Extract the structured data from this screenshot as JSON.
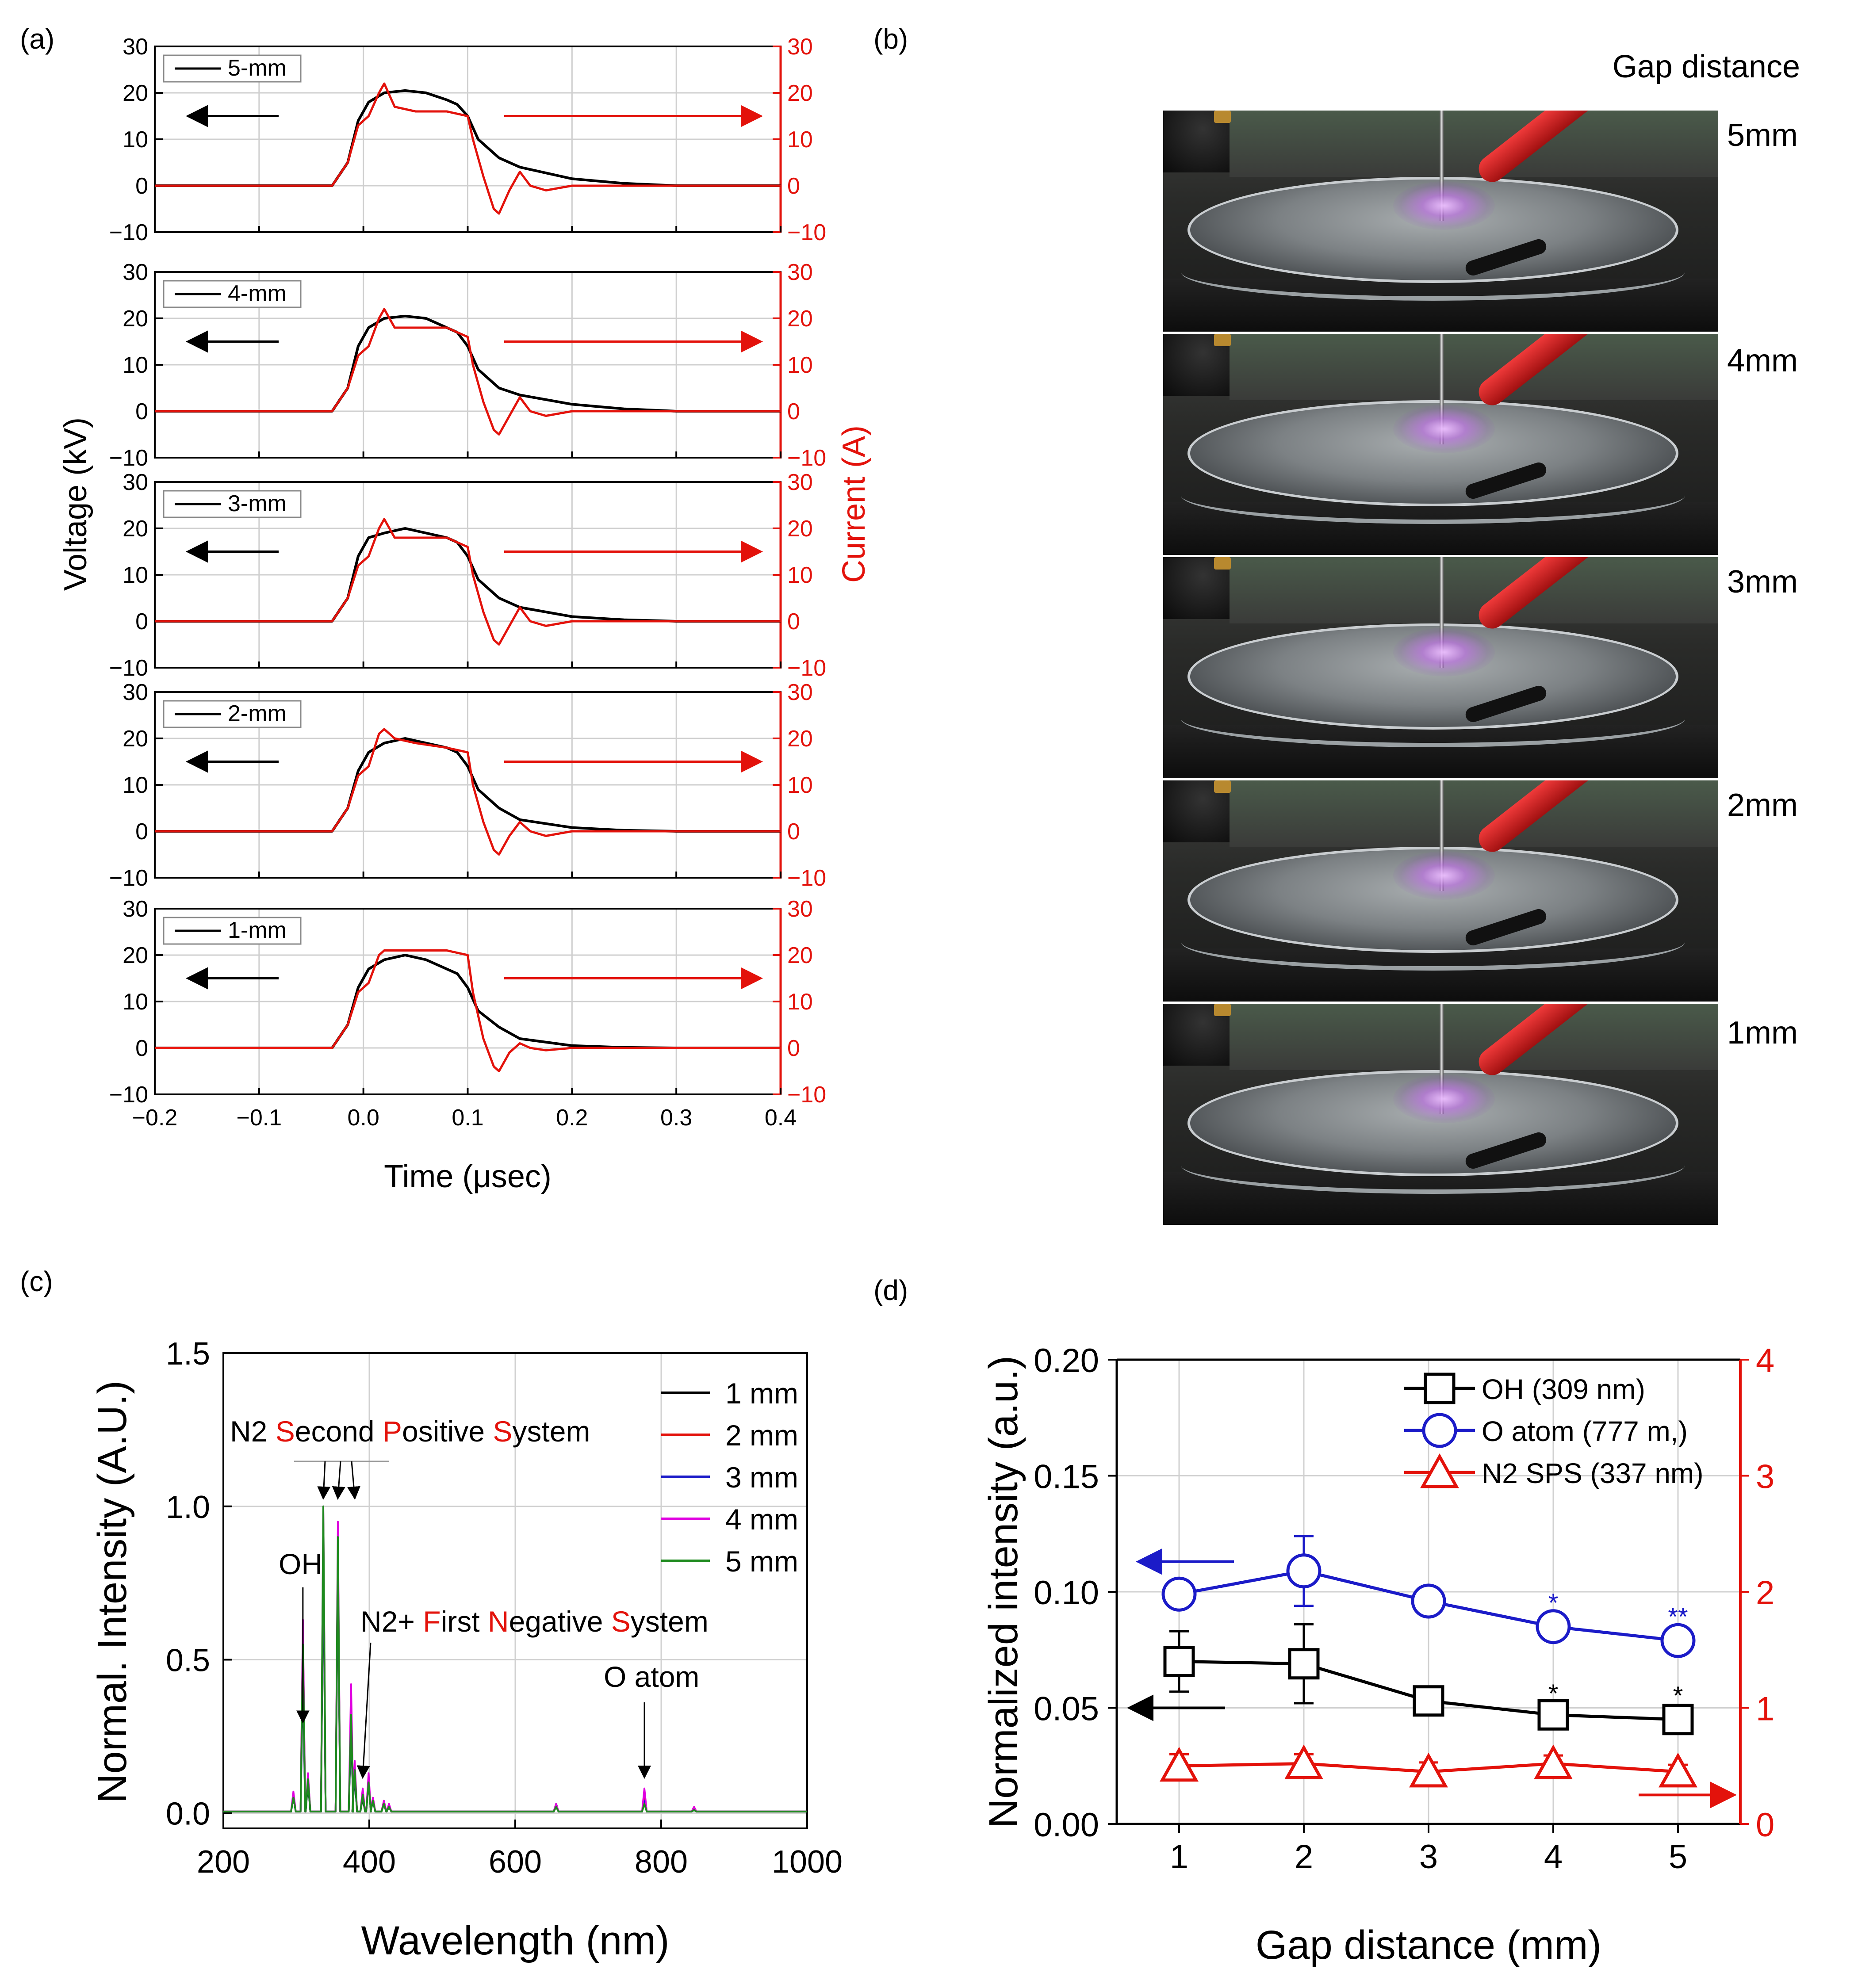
{
  "panel_labels": {
    "a": "(a)",
    "b": "(b)",
    "c": "(c)",
    "d": "(d)"
  },
  "chart_data": [
    {
      "id": "a",
      "type": "line",
      "title": "",
      "xlabel": "Time (μsec)",
      "ylabel_left": "Voltage (kV)",
      "ylabel_right": "Current (A)",
      "xlim": [
        -0.2,
        0.4
      ],
      "ylim_left": [
        -10,
        30
      ],
      "ylim_right": [
        -10,
        30
      ],
      "x_ticks": [
        "−0.2",
        "−0.1",
        "0.0",
        "0.1",
        "0.2",
        "0.3",
        "0.4"
      ],
      "y_ticks": [
        "−10",
        "0",
        "10",
        "20",
        "30"
      ],
      "colors": {
        "voltage": "#000000",
        "current": "#e3120b"
      },
      "subplots": [
        {
          "legend": "5-mm",
          "voltage": {
            "x": [
              -0.2,
              -0.03,
              -0.015,
              -0.005,
              0.005,
              0.02,
              0.04,
              0.06,
              0.08,
              0.09,
              0.1,
              0.11,
              0.13,
              0.15,
              0.2,
              0.25,
              0.3,
              0.35,
              0.4
            ],
            "y": [
              0,
              0,
              5,
              14,
              18,
              20,
              20.5,
              20,
              18.5,
              17.5,
              15,
              10,
              6,
              4,
              1.5,
              0.5,
              0,
              0,
              0
            ]
          },
          "current": {
            "x": [
              -0.2,
              -0.03,
              -0.015,
              -0.005,
              0.0,
              0.005,
              0.015,
              0.02,
              0.03,
              0.05,
              0.08,
              0.1,
              0.105,
              0.115,
              0.125,
              0.13,
              0.14,
              0.15,
              0.16,
              0.175,
              0.2,
              0.25,
              0.3,
              0.35,
              0.4
            ],
            "y": [
              0,
              0,
              5,
              13,
              14,
              15,
              20,
              22,
              17,
              16,
              16,
              15,
              10,
              2,
              -5,
              -6,
              -1,
              3,
              0,
              -1,
              0,
              0,
              0,
              0,
              0
            ]
          }
        },
        {
          "legend": "4-mm",
          "voltage": {
            "x": [
              -0.2,
              -0.03,
              -0.015,
              -0.005,
              0.005,
              0.02,
              0.04,
              0.06,
              0.08,
              0.09,
              0.1,
              0.11,
              0.13,
              0.15,
              0.2,
              0.25,
              0.3,
              0.35,
              0.4
            ],
            "y": [
              0,
              0,
              5,
              14,
              18,
              20,
              20.5,
              20,
              18,
              17,
              14,
              9,
              5,
              3.5,
              1.5,
              0.5,
              0,
              0,
              0
            ]
          },
          "current": {
            "x": [
              -0.2,
              -0.03,
              -0.015,
              -0.005,
              0.0,
              0.005,
              0.015,
              0.02,
              0.03,
              0.05,
              0.08,
              0.1,
              0.105,
              0.115,
              0.125,
              0.13,
              0.14,
              0.15,
              0.16,
              0.175,
              0.2,
              0.25,
              0.3,
              0.35,
              0.4
            ],
            "y": [
              0,
              0,
              5,
              12,
              13,
              14,
              20,
              22,
              18,
              18,
              18,
              16,
              10,
              2,
              -4,
              -5,
              -1,
              3,
              0,
              -1,
              0,
              0,
              0,
              0,
              0
            ]
          }
        },
        {
          "legend": "3-mm",
          "voltage": {
            "x": [
              -0.2,
              -0.03,
              -0.015,
              -0.005,
              0.005,
              0.02,
              0.04,
              0.06,
              0.08,
              0.09,
              0.1,
              0.11,
              0.13,
              0.15,
              0.2,
              0.25,
              0.3,
              0.35,
              0.4
            ],
            "y": [
              0,
              0,
              5,
              14,
              18,
              19,
              20,
              19,
              18,
              17,
              14,
              9,
              5,
              3,
              1,
              0.3,
              0,
              0,
              0
            ]
          },
          "current": {
            "x": [
              -0.2,
              -0.03,
              -0.015,
              -0.005,
              0.0,
              0.005,
              0.015,
              0.02,
              0.03,
              0.05,
              0.08,
              0.1,
              0.105,
              0.115,
              0.125,
              0.13,
              0.14,
              0.15,
              0.16,
              0.175,
              0.2,
              0.25,
              0.3,
              0.35,
              0.4
            ],
            "y": [
              0,
              0,
              5,
              12,
              13,
              14,
              20,
              22,
              18,
              18,
              18,
              16,
              10,
              2,
              -4,
              -5,
              -1,
              3,
              0,
              -1,
              0,
              0,
              0,
              0,
              0
            ]
          }
        },
        {
          "legend": "2-mm",
          "voltage": {
            "x": [
              -0.2,
              -0.03,
              -0.015,
              -0.005,
              0.005,
              0.02,
              0.04,
              0.06,
              0.08,
              0.09,
              0.1,
              0.11,
              0.13,
              0.15,
              0.2,
              0.25,
              0.3,
              0.35,
              0.4
            ],
            "y": [
              0,
              0,
              5,
              13,
              17,
              19,
              20,
              19,
              18,
              17,
              14,
              9,
              5,
              2.5,
              0.8,
              0.2,
              0,
              0,
              0
            ]
          },
          "current": {
            "x": [
              -0.2,
              -0.03,
              -0.015,
              -0.005,
              0.0,
              0.005,
              0.015,
              0.02,
              0.03,
              0.05,
              0.08,
              0.1,
              0.105,
              0.115,
              0.125,
              0.13,
              0.14,
              0.15,
              0.16,
              0.175,
              0.2,
              0.25,
              0.3,
              0.35,
              0.4
            ],
            "y": [
              0,
              0,
              5,
              12,
              13,
              14,
              21,
              22,
              20,
              19,
              18,
              17,
              10,
              2,
              -4,
              -5,
              -1,
              2,
              0,
              -1,
              0,
              0,
              0,
              0,
              0
            ]
          }
        },
        {
          "legend": "1-mm",
          "voltage": {
            "x": [
              -0.2,
              -0.03,
              -0.015,
              -0.005,
              0.005,
              0.02,
              0.04,
              0.06,
              0.08,
              0.09,
              0.1,
              0.11,
              0.13,
              0.15,
              0.2,
              0.25,
              0.3,
              0.35,
              0.4
            ],
            "y": [
              0,
              0,
              5,
              13,
              17,
              19,
              20,
              19,
              17,
              16,
              13,
              8,
              4.5,
              2,
              0.5,
              0.1,
              0,
              0,
              0
            ]
          },
          "current": {
            "x": [
              -0.2,
              -0.03,
              -0.015,
              -0.005,
              0.0,
              0.005,
              0.015,
              0.02,
              0.03,
              0.05,
              0.08,
              0.1,
              0.105,
              0.115,
              0.125,
              0.13,
              0.14,
              0.15,
              0.16,
              0.175,
              0.2,
              0.25,
              0.3,
              0.35,
              0.4
            ],
            "y": [
              0,
              0,
              5,
              12,
              13,
              14,
              20,
              21,
              21,
              21,
              21,
              20,
              12,
              2,
              -4,
              -5,
              -1,
              1,
              0,
              -0.5,
              0,
              0,
              0,
              0,
              0
            ]
          }
        }
      ]
    },
    {
      "id": "c",
      "type": "line",
      "title": "",
      "xlabel": "Wavelength (nm)",
      "ylabel": "Normal. Intensity (A.U.)",
      "xlim": [
        200,
        1000
      ],
      "ylim": [
        -0.05,
        1.5
      ],
      "x_ticks": [
        "200",
        "400",
        "600",
        "800",
        "1000"
      ],
      "y_ticks": [
        "0.0",
        "0.5",
        "1.0",
        "1.5"
      ],
      "peaks_x": [
        296,
        309,
        316,
        337,
        357,
        375,
        380,
        391,
        399,
        405,
        420,
        427,
        656,
        777,
        845
      ],
      "series": [
        {
          "name": "1 mm",
          "color": "#000000",
          "values": [
            0.05,
            0.45,
            0.1,
            0.85,
            0.8,
            0.28,
            0.12,
            0.05,
            0.1,
            0.04,
            0.03,
            0.02,
            0.03,
            0.04,
            0.01
          ]
        },
        {
          "name": "2 mm",
          "color": "#e3120b",
          "values": [
            0.06,
            0.6,
            0.12,
            0.95,
            0.88,
            0.35,
            0.15,
            0.07,
            0.12,
            0.05,
            0.04,
            0.02,
            0.03,
            0.05,
            0.02
          ]
        },
        {
          "name": "3 mm",
          "color": "#1b1bc8",
          "values": [
            0.05,
            0.5,
            0.11,
            0.9,
            0.85,
            0.3,
            0.13,
            0.06,
            0.11,
            0.04,
            0.03,
            0.02,
            0.03,
            0.04,
            0.01
          ]
        },
        {
          "name": "4 mm",
          "color": "#e000e0",
          "values": [
            0.07,
            0.63,
            0.13,
            1.0,
            0.95,
            0.42,
            0.17,
            0.08,
            0.13,
            0.05,
            0.04,
            0.03,
            0.03,
            0.08,
            0.02
          ]
        },
        {
          "name": "5 mm",
          "color": "#1e8a1e",
          "values": [
            0.05,
            0.55,
            0.11,
            1.0,
            0.9,
            0.32,
            0.14,
            0.06,
            0.1,
            0.04,
            0.03,
            0.02,
            0.02,
            0.03,
            0.01
          ]
        }
      ],
      "annotations": {
        "sps": [
          "N2 ",
          "S",
          "econd ",
          "P",
          "ositive ",
          "S",
          "ystem"
        ],
        "fns": [
          "N2+ ",
          "F",
          "irst ",
          "N",
          "egative ",
          "S",
          "ystem"
        ],
        "oh": "OH",
        "o_atom": "O atom"
      }
    },
    {
      "id": "d",
      "type": "scatter",
      "title": "",
      "xlabel": "Gap distance (mm)",
      "ylabel": "Normalized intensity (a.u.)",
      "xlim": [
        0.5,
        5.5
      ],
      "ylim_left": [
        0,
        0.2
      ],
      "ylim_right": [
        0,
        4
      ],
      "x_ticks": [
        "1",
        "2",
        "3",
        "4",
        "5"
      ],
      "y_ticks_left": [
        "0.00",
        "0.05",
        "0.10",
        "0.15",
        "0.20"
      ],
      "y_ticks_right": [
        "0",
        "1",
        "2",
        "3",
        "4"
      ],
      "categories": [
        1,
        2,
        3,
        4,
        5
      ],
      "series": [
        {
          "name": "OH (309 nm)",
          "marker": "square",
          "color": "#000000",
          "axis": "left",
          "values": [
            0.07,
            0.069,
            0.053,
            0.047,
            0.045
          ],
          "errors": [
            0.013,
            0.017,
            0.003,
            0.002,
            0.003
          ],
          "significance": [
            "",
            "",
            "",
            "*",
            "*"
          ]
        },
        {
          "name": "O atom (777 m,)",
          "marker": "circle",
          "color": "#1b1bc8",
          "axis": "left",
          "values": [
            0.099,
            0.109,
            0.096,
            0.085,
            0.079
          ],
          "errors": [
            0.004,
            0.015,
            0.004,
            0.003,
            0.003
          ],
          "significance": [
            "",
            "",
            "",
            "*",
            "**"
          ]
        },
        {
          "name": "N2 SPS (337 nm)",
          "marker": "triangle",
          "color": "#e3120b",
          "axis": "right",
          "values": [
            0.5,
            0.52,
            0.45,
            0.52,
            0.45
          ],
          "errors": [
            0.1,
            0.08,
            0.08,
            0.07,
            0.06
          ],
          "significance": [
            "",
            "",
            "",
            "",
            ""
          ]
        }
      ]
    }
  ],
  "photos": {
    "title": "Gap distance",
    "labels": [
      "5mm",
      "4mm",
      "3mm",
      "2mm",
      "1mm"
    ]
  }
}
